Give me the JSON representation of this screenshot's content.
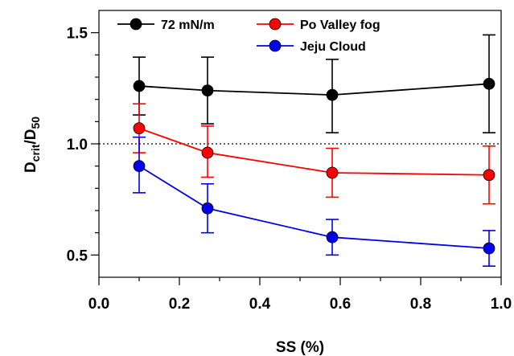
{
  "chart_data": {
    "type": "line",
    "title": "",
    "xlabel": "SS (%)",
    "ylabel": {
      "base": "D",
      "sub1": "crit",
      "mid": "/D",
      "sub2": "50"
    },
    "xlim": [
      0.0,
      1.0
    ],
    "ylim": [
      0.4,
      1.6
    ],
    "xticks": [
      "0.0",
      "0.2",
      "0.4",
      "0.6",
      "0.8",
      "1.0"
    ],
    "yticks": [
      "0.5",
      "1.0",
      "1.5"
    ],
    "reference_line": {
      "y": 1.0,
      "style": "dotted"
    },
    "legend_position": "top",
    "series": [
      {
        "name": "72 mN/m",
        "color": "#000000",
        "x": [
          0.1,
          0.27,
          0.58,
          0.97
        ],
        "y": [
          1.26,
          1.24,
          1.22,
          1.27
        ],
        "err_low": [
          0.13,
          0.15,
          0.17,
          0.22
        ],
        "err_high": [
          0.13,
          0.15,
          0.16,
          0.22
        ]
      },
      {
        "name": "Po Valley fog",
        "color": "#ff0000",
        "x": [
          0.1,
          0.27,
          0.58,
          0.97
        ],
        "y": [
          1.07,
          0.96,
          0.87,
          0.86
        ],
        "err_low": [
          0.11,
          0.11,
          0.11,
          0.13
        ],
        "err_high": [
          0.11,
          0.12,
          0.11,
          0.13
        ]
      },
      {
        "name": "Jeju Cloud",
        "color": "#0000ee",
        "x": [
          0.1,
          0.27,
          0.58,
          0.97
        ],
        "y": [
          0.9,
          0.71,
          0.58,
          0.53
        ],
        "err_low": [
          0.12,
          0.11,
          0.08,
          0.08
        ],
        "err_high": [
          0.13,
          0.11,
          0.08,
          0.08
        ]
      }
    ]
  }
}
